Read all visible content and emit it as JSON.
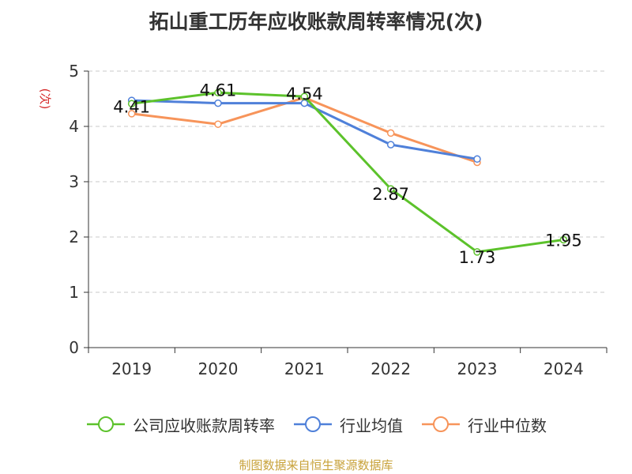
{
  "title": "拓山重工历年应收账款周转率情况(次)",
  "source_note": "制图数据来自恒生聚源数据库",
  "chart_data": {
    "type": "line",
    "title": "拓山重工历年应收账款周转率情况(次)",
    "ylabel": "(次)",
    "xlabel": "",
    "categories": [
      "2019",
      "2020",
      "2021",
      "2022",
      "2023",
      "2024"
    ],
    "ylim": [
      0,
      5
    ],
    "yticks": [
      "0",
      "1",
      "2",
      "3",
      "4",
      "5"
    ],
    "grid": true,
    "legend_position": "bottom",
    "series": [
      {
        "name": "公司应收账款周转率",
        "color": "#5cc22b",
        "values": [
          4.41,
          4.61,
          4.54,
          2.87,
          1.73,
          1.95
        ],
        "labels": [
          "4.41",
          "4.61",
          "4.54",
          "2.87",
          "1.73",
          "1.95"
        ]
      },
      {
        "name": "行业均值",
        "color": "#4f80d9",
        "values": [
          4.47,
          4.42,
          4.42,
          3.67,
          3.41,
          null
        ]
      },
      {
        "name": "行业中位数",
        "color": "#f7945a",
        "values": [
          4.23,
          4.04,
          4.52,
          3.88,
          3.35,
          null
        ]
      }
    ]
  }
}
